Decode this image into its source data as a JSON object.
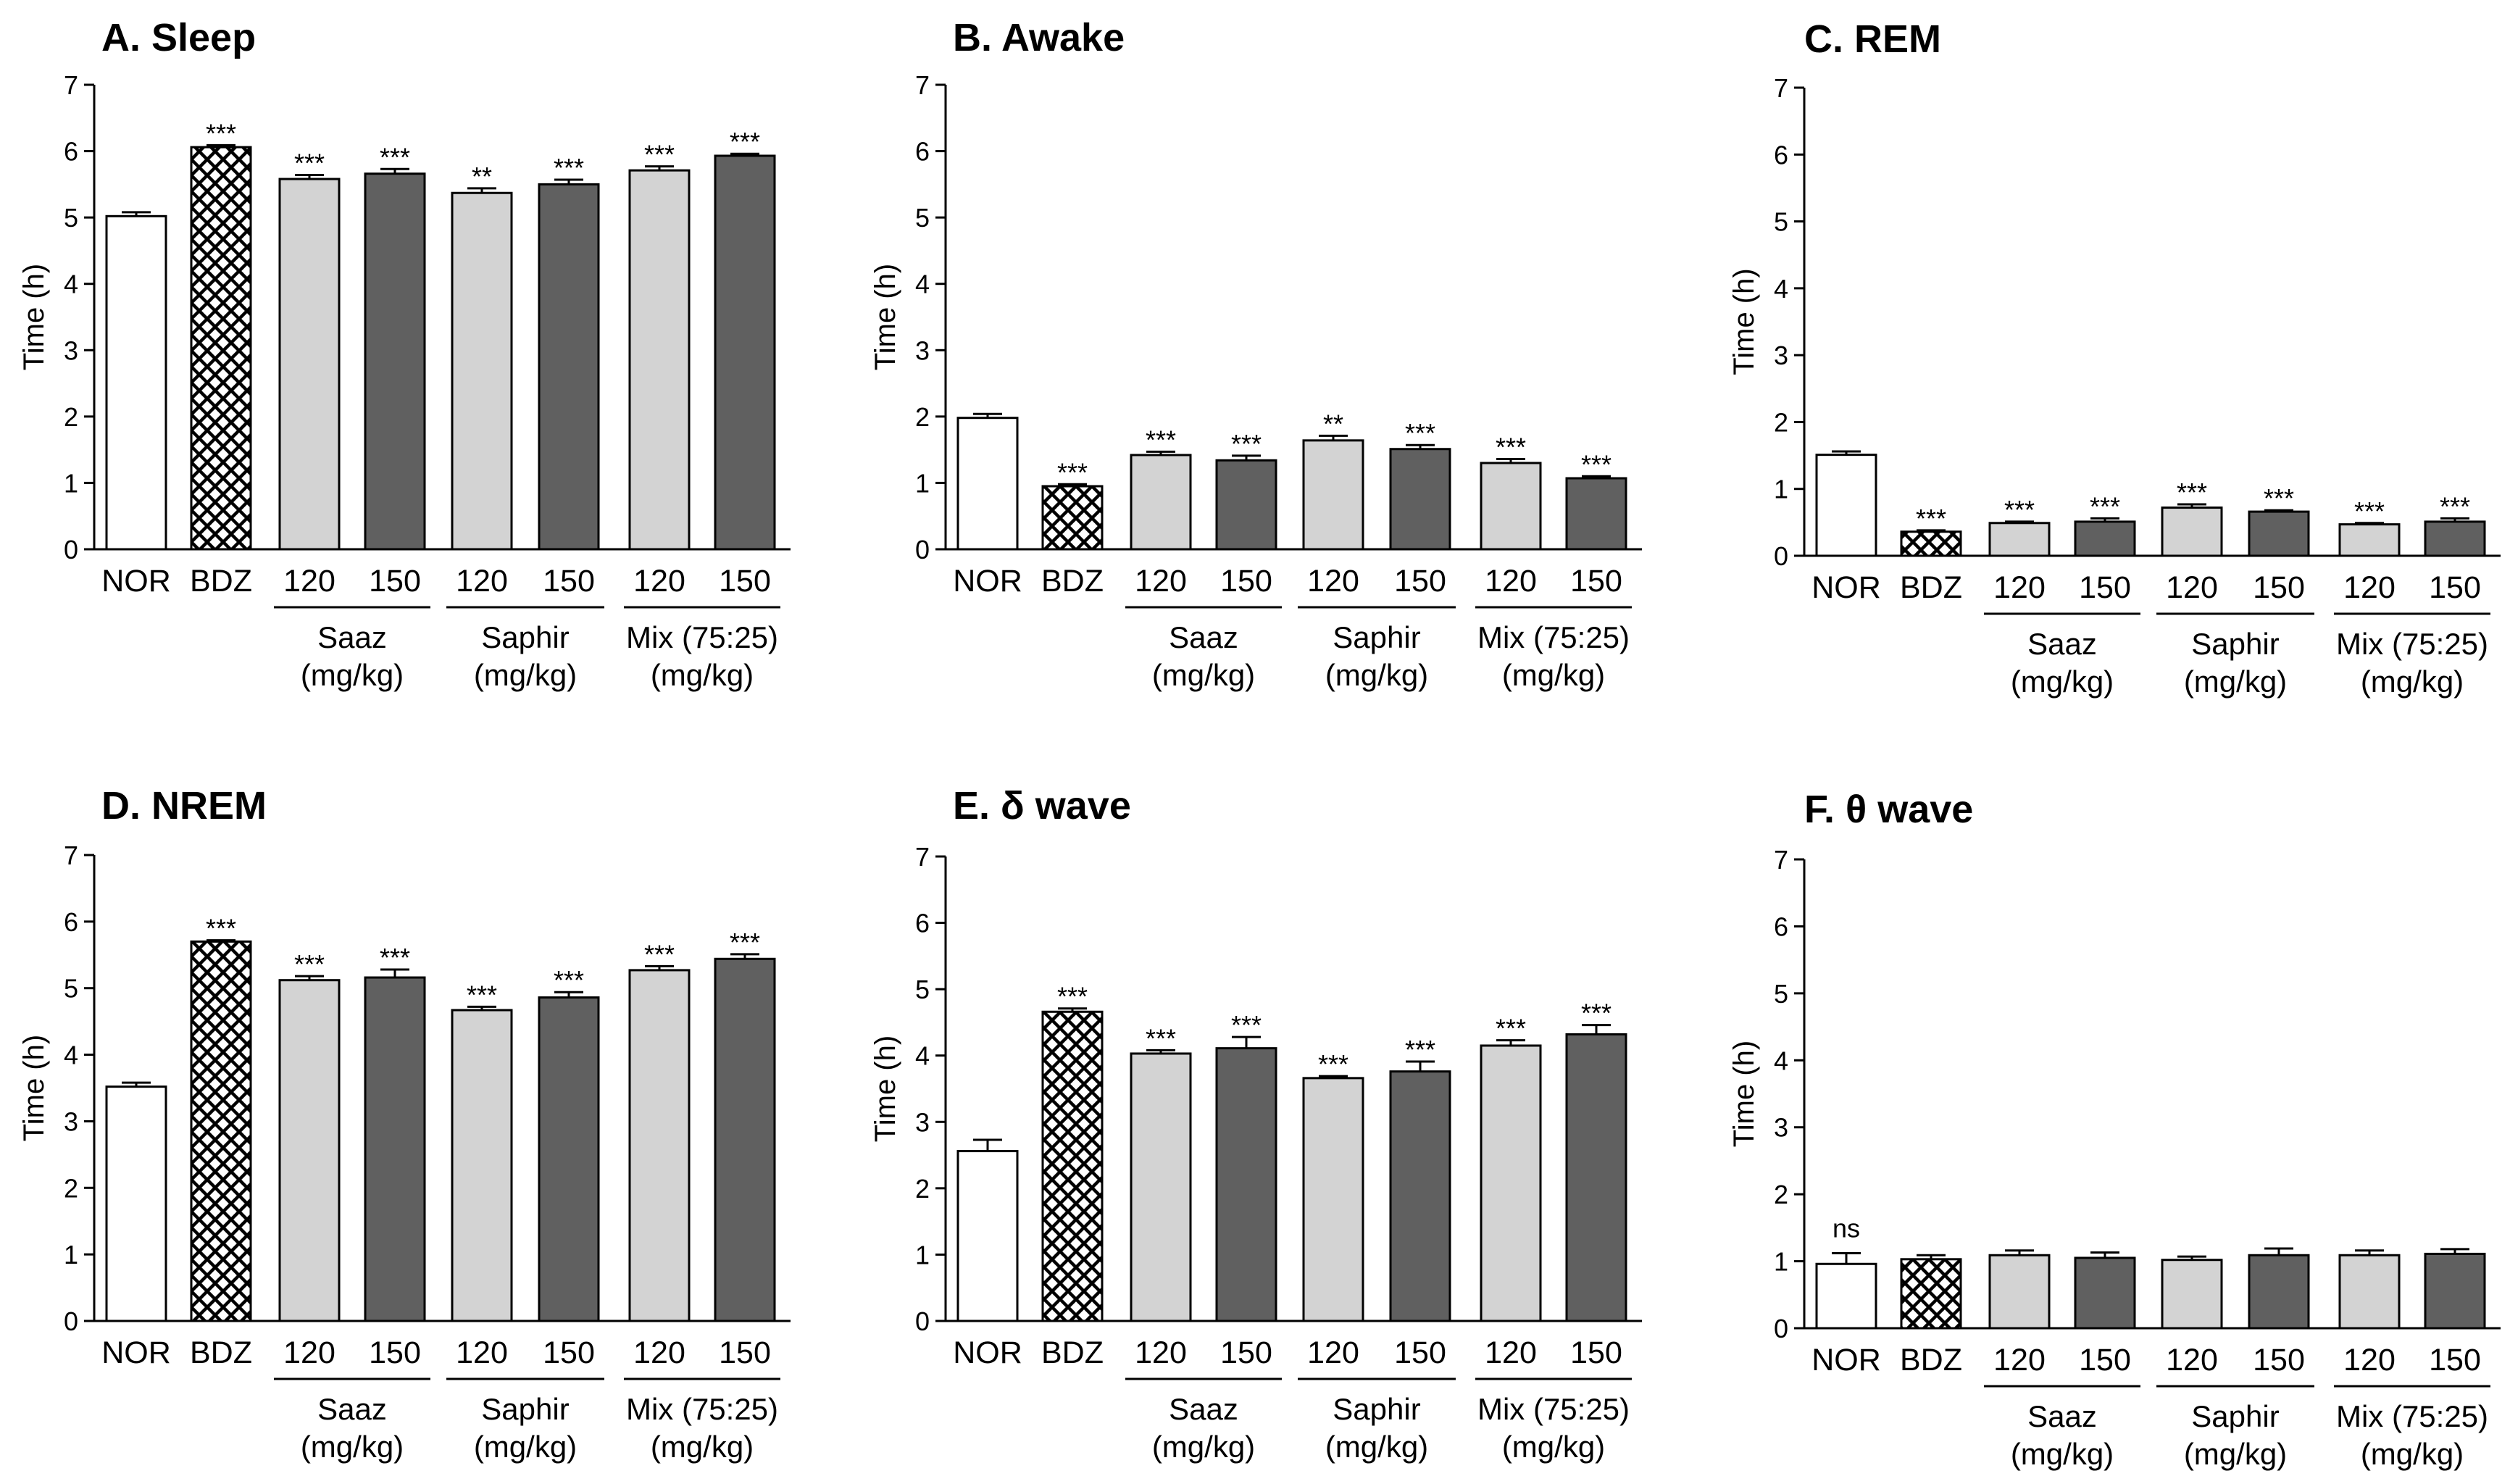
{
  "colors": {
    "NOR": "#ffffff",
    "BDZ": "#ffffff",
    "120": "#d3d3d3",
    "150": "#606060",
    "outline": "#000000"
  },
  "chart_data": [
    {
      "type": "bar",
      "title": "A. Sleep",
      "ylabel": "Time (h)",
      "ylim": [
        0,
        7
      ],
      "yticks": [
        "0",
        "1",
        "2",
        "3",
        "4",
        "5",
        "6",
        "7"
      ],
      "categories": [
        "NOR",
        "BDZ",
        "120",
        "150",
        "120",
        "150",
        "120",
        "150"
      ],
      "values": [
        5.02,
        6.06,
        5.58,
        5.66,
        5.37,
        5.5,
        5.71,
        5.93
      ],
      "errors": [
        0.06,
        0.03,
        0.06,
        0.07,
        0.07,
        0.07,
        0.06,
        0.03
      ],
      "significance": [
        "",
        "***",
        "***",
        "***",
        "**",
        "***",
        "***",
        "***"
      ],
      "groups": [
        {
          "line1": "Saaz",
          "line2": "(mg/kg)"
        },
        {
          "line1": "Saphir",
          "line2": "(mg/kg)"
        },
        {
          "line1": "Mix (75:25)",
          "line2": "(mg/kg)"
        }
      ]
    },
    {
      "type": "bar",
      "title": "B. Awake",
      "ylabel": "Time (h)",
      "ylim": [
        0,
        7
      ],
      "yticks": [
        "0",
        "1",
        "2",
        "3",
        "4",
        "5",
        "6",
        "7"
      ],
      "categories": [
        "NOR",
        "BDZ",
        "120",
        "150",
        "120",
        "150",
        "120",
        "150"
      ],
      "values": [
        1.98,
        0.95,
        1.42,
        1.34,
        1.64,
        1.51,
        1.3,
        1.07
      ],
      "errors": [
        0.06,
        0.03,
        0.05,
        0.07,
        0.07,
        0.06,
        0.06,
        0.03
      ],
      "significance": [
        "",
        "***",
        "***",
        "***",
        "**",
        "***",
        "***",
        "***"
      ],
      "groups": [
        {
          "line1": "Saaz",
          "line2": "(mg/kg)"
        },
        {
          "line1": "Saphir",
          "line2": "(mg/kg)"
        },
        {
          "line1": "Mix (75:25)",
          "line2": "(mg/kg)"
        }
      ]
    },
    {
      "type": "bar",
      "title": "C. REM",
      "ylabel": "Time (h)",
      "ylim": [
        0,
        7
      ],
      "yticks": [
        "0",
        "1",
        "2",
        "3",
        "4",
        "5",
        "6",
        "7"
      ],
      "categories": [
        "NOR",
        "BDZ",
        "120",
        "150",
        "120",
        "150",
        "120",
        "150"
      ],
      "values": [
        1.51,
        0.36,
        0.49,
        0.51,
        0.72,
        0.66,
        0.47,
        0.51
      ],
      "errors": [
        0.05,
        0.02,
        0.02,
        0.05,
        0.05,
        0.02,
        0.02,
        0.05
      ],
      "significance": [
        "",
        "***",
        "***",
        "***",
        "***",
        "***",
        "***",
        "***"
      ],
      "groups": [
        {
          "line1": "Saaz",
          "line2": "(mg/kg)"
        },
        {
          "line1": "Saphir",
          "line2": "(mg/kg)"
        },
        {
          "line1": "Mix (75:25)",
          "line2": "(mg/kg)"
        }
      ]
    },
    {
      "type": "bar",
      "title": "D. NREM",
      "ylabel": "Time (h)",
      "ylim": [
        0,
        7
      ],
      "yticks": [
        "0",
        "1",
        "2",
        "3",
        "4",
        "5",
        "6",
        "7"
      ],
      "categories": [
        "NOR",
        "BDZ",
        "120",
        "150",
        "120",
        "150",
        "120",
        "150"
      ],
      "values": [
        3.52,
        5.7,
        5.12,
        5.16,
        4.67,
        4.86,
        5.27,
        5.44
      ],
      "errors": [
        0.06,
        0.02,
        0.06,
        0.12,
        0.05,
        0.08,
        0.06,
        0.07
      ],
      "significance": [
        "",
        "***",
        "***",
        "***",
        "***",
        "***",
        "***",
        "***"
      ],
      "groups": [
        {
          "line1": "Saaz",
          "line2": "(mg/kg)"
        },
        {
          "line1": "Saphir",
          "line2": "(mg/kg)"
        },
        {
          "line1": "Mix (75:25)",
          "line2": "(mg/kg)"
        }
      ]
    },
    {
      "type": "bar",
      "title": "E. δ wave",
      "ylabel": "Time (h)",
      "ylim": [
        0,
        7
      ],
      "yticks": [
        "0",
        "1",
        "2",
        "3",
        "4",
        "5",
        "6",
        "7"
      ],
      "categories": [
        "NOR",
        "BDZ",
        "120",
        "150",
        "120",
        "150",
        "120",
        "150"
      ],
      "values": [
        2.56,
        4.66,
        4.03,
        4.11,
        3.66,
        3.76,
        4.15,
        4.32
      ],
      "errors": [
        0.17,
        0.05,
        0.05,
        0.17,
        0.03,
        0.15,
        0.08,
        0.14
      ],
      "significance": [
        "",
        "***",
        "***",
        "***",
        "***",
        "***",
        "***",
        "***"
      ],
      "groups": [
        {
          "line1": "Saaz",
          "line2": "(mg/kg)"
        },
        {
          "line1": "Saphir",
          "line2": "(mg/kg)"
        },
        {
          "line1": "Mix (75:25)",
          "line2": "(mg/kg)"
        }
      ]
    },
    {
      "type": "bar",
      "title": "F. θ wave",
      "ylabel": "Time (h)",
      "ylim": [
        0,
        7
      ],
      "yticks": [
        "0",
        "1",
        "2",
        "3",
        "4",
        "5",
        "6",
        "7"
      ],
      "categories": [
        "NOR",
        "BDZ",
        "120",
        "150",
        "120",
        "150",
        "120",
        "150"
      ],
      "values": [
        0.96,
        1.03,
        1.09,
        1.05,
        1.02,
        1.09,
        1.09,
        1.11
      ],
      "errors": [
        0.16,
        0.06,
        0.07,
        0.08,
        0.05,
        0.1,
        0.07,
        0.07
      ],
      "significance": [
        "ns",
        "",
        "",
        "",
        "",
        "",
        "",
        ""
      ],
      "groups": [
        {
          "line1": "Saaz",
          "line2": "(mg/kg)"
        },
        {
          "line1": "Saphir",
          "line2": "(mg/kg)"
        },
        {
          "line1": "Mix (75:25)",
          "line2": "(mg/kg)"
        }
      ]
    }
  ]
}
